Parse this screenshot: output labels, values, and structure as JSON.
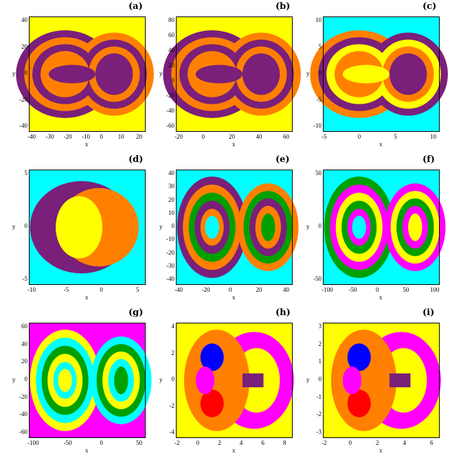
{
  "figure": {
    "panels": [
      {
        "label": "(a)",
        "xlabel": "x",
        "ylabel": "y",
        "xticks": [
          "-40",
          "-30",
          "-20",
          "-10",
          "0",
          "10",
          "20"
        ],
        "yticks": [
          "40",
          "20",
          "0",
          "-20",
          "-40"
        ],
        "bg": "#ffff00",
        "style": "bow",
        "lobes": [
          "#7a1f7a",
          "#ff8000"
        ],
        "core": "#7a1f7a"
      },
      {
        "label": "(b)",
        "xlabel": "x",
        "ylabel": "y",
        "xticks": [
          "-20",
          "0",
          "20",
          "40",
          "60"
        ],
        "yticks": [
          "80",
          "60",
          "40",
          "20",
          "0",
          "-20",
          "-40",
          "-60"
        ],
        "bg": "#ffff00",
        "style": "bow",
        "lobes": [
          "#7a1f7a",
          "#ff8000"
        ],
        "core": "#7a1f7a"
      },
      {
        "label": "(c)",
        "xlabel": "x",
        "ylabel": "y",
        "xticks": [
          "-5",
          "0",
          "5",
          "10"
        ],
        "yticks": [
          "10",
          "5",
          "0",
          "-5",
          "-10"
        ],
        "bg": "#00ffff",
        "style": "bow",
        "lobes": [
          "#ff8000",
          "#7a1f7a",
          "#ffff00"
        ],
        "core": "#ffff00"
      },
      {
        "label": "(d)",
        "xlabel": "x",
        "ylabel": "y",
        "xticks": [
          "-10",
          "-5",
          "0",
          "5"
        ],
        "yticks": [
          "5",
          "0",
          "-5"
        ],
        "bg": "#00ffff",
        "style": "crescent",
        "lobes": [
          "#7a1f7a",
          "#ff8000"
        ],
        "core": "#ffff00"
      },
      {
        "label": "(e)",
        "xlabel": "x",
        "ylabel": "y",
        "xticks": [
          "-40",
          "-20",
          "0",
          "20",
          "40"
        ],
        "yticks": [
          "40",
          "30",
          "20",
          "10",
          "0",
          "-10",
          "-20",
          "-30",
          "-40"
        ],
        "bg": "#00ffff",
        "style": "rings",
        "lobes": [
          "#7a1f7a",
          "#ff8000",
          "#00a000"
        ],
        "core": "#00ffff"
      },
      {
        "label": "(f)",
        "xlabel": "x",
        "ylabel": "y",
        "xticks": [
          "-100",
          "-50",
          "0",
          "50",
          "100"
        ],
        "yticks": [
          "50",
          "0",
          "-50"
        ],
        "bg": "#00ffff",
        "style": "rings",
        "lobes": [
          "#00a000",
          "#ff00ff",
          "#ffff00"
        ],
        "core": "#00ffff"
      },
      {
        "label": "(g)",
        "xlabel": "x",
        "ylabel": "y",
        "xticks": [
          "-100",
          "-50",
          "0",
          "50"
        ],
        "yticks": [
          "60",
          "40",
          "20",
          "0",
          "-20",
          "-40",
          "-60"
        ],
        "bg": "#ff00ff",
        "style": "rings",
        "lobes": [
          "#ffff00",
          "#00ffff",
          "#00a000"
        ],
        "core": "#ffff00"
      },
      {
        "label": "(h)",
        "xlabel": "x",
        "ylabel": "y",
        "xticks": [
          "-2",
          "0",
          "2",
          "4",
          "6",
          "8"
        ],
        "yticks": [
          "4",
          "2",
          "0",
          "-2",
          "-4"
        ],
        "bg": "#ffff00",
        "style": "fractal",
        "lobes": [
          "#ff00ff",
          "#7a1f7a",
          "#ff8000"
        ],
        "core": "#ffff00"
      },
      {
        "label": "(i)",
        "xlabel": "x",
        "ylabel": "y",
        "xticks": [
          "-2",
          "0",
          "2",
          "4",
          "6"
        ],
        "yticks": [
          "3",
          "2",
          "1",
          "0",
          "-1",
          "-2",
          "-3"
        ],
        "bg": "#ffff00",
        "style": "fractal",
        "lobes": [
          "#ff00ff",
          "#7a1f7a",
          "#ff8000"
        ],
        "core": "#ffff00"
      }
    ]
  }
}
